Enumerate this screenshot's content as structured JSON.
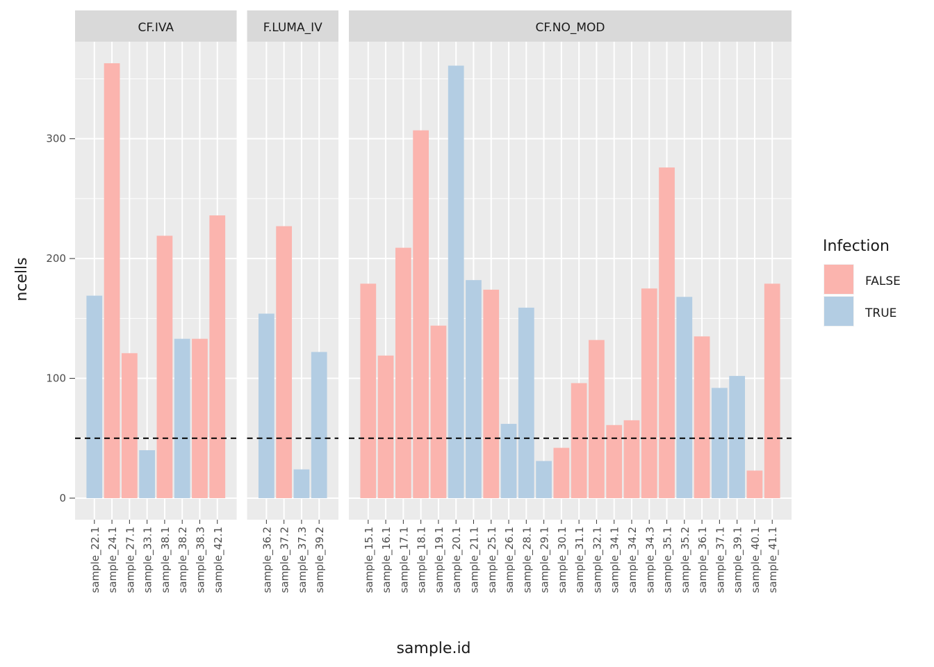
{
  "chart_data": {
    "type": "bar",
    "x_label": "sample.id",
    "y_label": "ncells",
    "ylim": [
      -18,
      381
    ],
    "yticks": [
      0,
      100,
      200,
      300
    ],
    "grid": true,
    "hline": 50,
    "legend": {
      "title": "Infection",
      "entries": [
        {
          "name": "FALSE",
          "color": "#fbb4ae"
        },
        {
          "name": "TRUE",
          "color": "#b3cde3"
        }
      ]
    },
    "facets": [
      {
        "label": "CF.IVA",
        "categories": [
          "sample_22.1",
          "sample_24.1",
          "sample_27.1",
          "sample_33.1",
          "sample_38.1",
          "sample_38.2",
          "sample_38.3",
          "sample_42.1"
        ],
        "values": [
          169,
          363,
          121,
          40,
          219,
          133,
          133,
          236
        ],
        "infection": [
          "TRUE",
          "FALSE",
          "FALSE",
          "TRUE",
          "FALSE",
          "TRUE",
          "FALSE",
          "FALSE"
        ]
      },
      {
        "label": "F.LUMA_IV",
        "categories": [
          "sample_36.2",
          "sample_37.2",
          "sample_37.3",
          "sample_39.2"
        ],
        "values": [
          154,
          227,
          24,
          122
        ],
        "infection": [
          "TRUE",
          "FALSE",
          "TRUE",
          "TRUE"
        ]
      },
      {
        "label": "CF.NO_MOD",
        "categories": [
          "sample_15.1",
          "sample_16.1",
          "sample_17.1",
          "sample_18.1",
          "sample_19.1",
          "sample_20.1",
          "sample_21.1",
          "sample_25.1",
          "sample_26.1",
          "sample_28.1",
          "sample_29.1",
          "sample_30.1",
          "sample_31.1",
          "sample_32.1",
          "sample_34.1",
          "sample_34.2",
          "sample_34.3",
          "sample_35.1",
          "sample_35.2",
          "sample_36.1",
          "sample_37.1",
          "sample_39.1",
          "sample_40.1",
          "sample_41.1"
        ],
        "values": [
          179,
          119,
          209,
          307,
          144,
          361,
          182,
          174,
          62,
          159,
          31,
          42,
          96,
          132,
          61,
          65,
          175,
          276,
          168,
          135,
          92,
          102,
          23,
          179
        ],
        "infection": [
          "FALSE",
          "FALSE",
          "FALSE",
          "FALSE",
          "FALSE",
          "TRUE",
          "TRUE",
          "FALSE",
          "TRUE",
          "TRUE",
          "TRUE",
          "FALSE",
          "FALSE",
          "FALSE",
          "FALSE",
          "FALSE",
          "FALSE",
          "FALSE",
          "TRUE",
          "FALSE",
          "TRUE",
          "TRUE",
          "FALSE",
          "FALSE"
        ]
      }
    ]
  }
}
